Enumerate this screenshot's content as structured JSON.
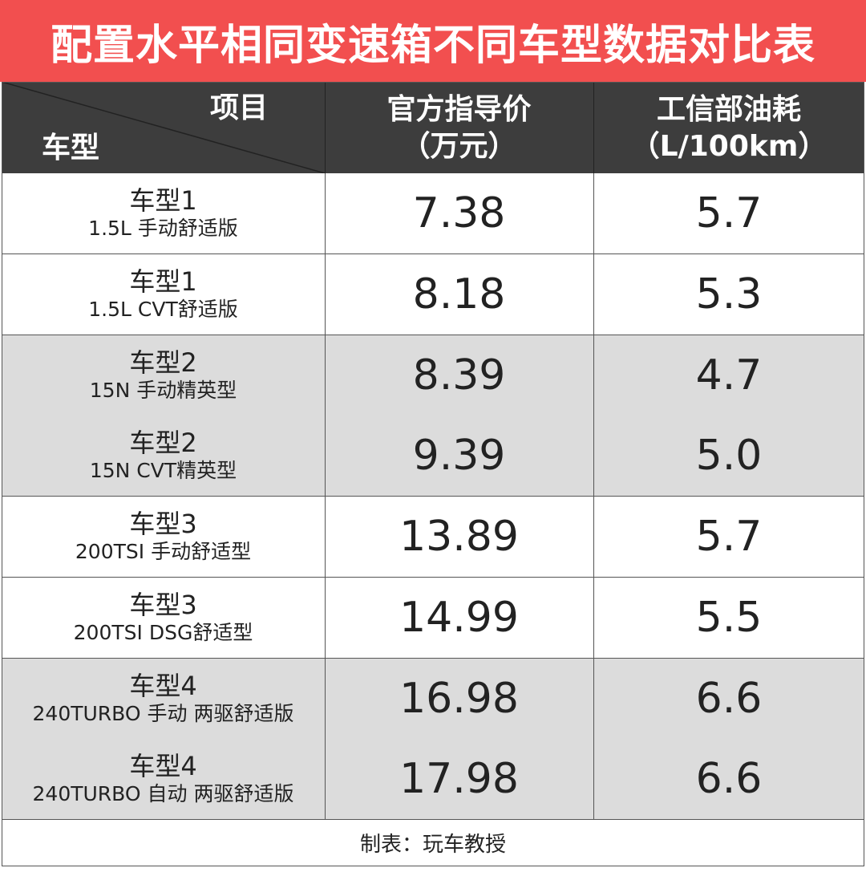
{
  "title": "配置水平相同变速箱不同车型数据对比表",
  "header": {
    "item": "项目",
    "model": "车型",
    "price": "官方指导价",
    "price_unit": "（万元）",
    "fuel": "工信部油耗",
    "fuel_unit": "（L/100km）"
  },
  "table": {
    "rows": [
      [
        "车型1",
        "1.5L 手动舒适版",
        "7.38",
        "5.7"
      ],
      [
        "车型1",
        "1.5L CVT舒适版",
        "8.18",
        "5.3"
      ],
      [
        "车型2",
        "15N 手动精英型",
        "8.39",
        "4.7"
      ],
      [
        "车型2",
        "15N CVT精英型",
        "9.39",
        "5.0"
      ],
      [
        "车型3",
        "200TSI 手动舒适型",
        "13.89",
        "5.7"
      ],
      [
        "车型3",
        "200TSI DSG舒适型",
        "14.99",
        "5.5"
      ],
      [
        "车型4",
        "240TURBO 手动 两驱舒适版",
        "16.98",
        "6.6"
      ],
      [
        "车型4",
        "240TURBO 自动 两驱舒适版",
        "17.98",
        "6.6"
      ]
    ]
  },
  "footer": "制表：玩车教授"
}
